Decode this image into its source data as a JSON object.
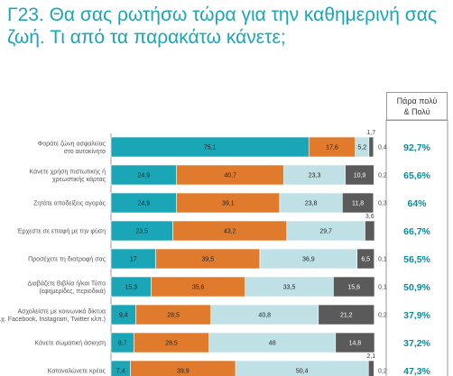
{
  "title": "Γ23. Θα σας ρωτήσω τώρα για την καθημερινή σας ζωή. Τι από τα παρακάτω κάνετε;",
  "high_header": "Πάρα πολύ\n& Πολύ",
  "chart_data": {
    "type": "bar",
    "orientation": "horizontal",
    "stacked": true,
    "xlim": [
      0,
      100
    ],
    "categories": [
      [
        "Φοράτε ζώνη ασφαλείας",
        "στο αυτοκίνητο"
      ],
      [
        "Κάνετε χρήση πιστωτικής ή",
        "χρεωστικής κάρτας"
      ],
      [
        "Ζητάτε αποδείξεις αγοράς"
      ],
      [
        "Έρχεστε σε επαφή με την φύση"
      ],
      [
        "Προσέχετε τη διατροφή σας"
      ],
      [
        "Διαβάζετε Βιβλία ή/και Τύπο",
        "(εφημερίδες, περιοδικά)"
      ],
      [
        "Ασχολείστε με κοινωνικά δίκτυα",
        "(π.χ. Facebook, Instagram, Twitter κλπ.)"
      ],
      [
        "Κάνετε σωματική άσκηση"
      ],
      [
        "Καταναλώνετε κρέας"
      ]
    ],
    "series": [
      {
        "color": "#1aa6b6",
        "values": [
          75.1,
          24.9,
          24.9,
          23.5,
          17,
          15.3,
          9.4,
          8.7,
          7.4
        ]
      },
      {
        "color": "#e07b2e",
        "values": [
          17.6,
          40.7,
          39.1,
          43.2,
          39.5,
          35.6,
          28.5,
          28.5,
          39.9
        ]
      },
      {
        "color": "#bfe1e6",
        "values": [
          5.2,
          23.3,
          23.8,
          29.7,
          36.9,
          33.5,
          40.8,
          48,
          50.4
        ]
      },
      {
        "color": "#5a5a5a",
        "values": [
          1.7,
          10.9,
          11.8,
          3.6,
          6.5,
          15.6,
          21.2,
          14.8,
          2.1
        ]
      }
    ],
    "remainder": [
      0.4,
      0.2,
      0.3,
      null,
      0.1,
      0.1,
      0.2,
      null,
      0.2
    ],
    "high_values": [
      "92,7%",
      "65,6%",
      "64%",
      "66,7%",
      "56,5%",
      "50,9%",
      "37,9%",
      "37,2%",
      "47,3%"
    ]
  }
}
